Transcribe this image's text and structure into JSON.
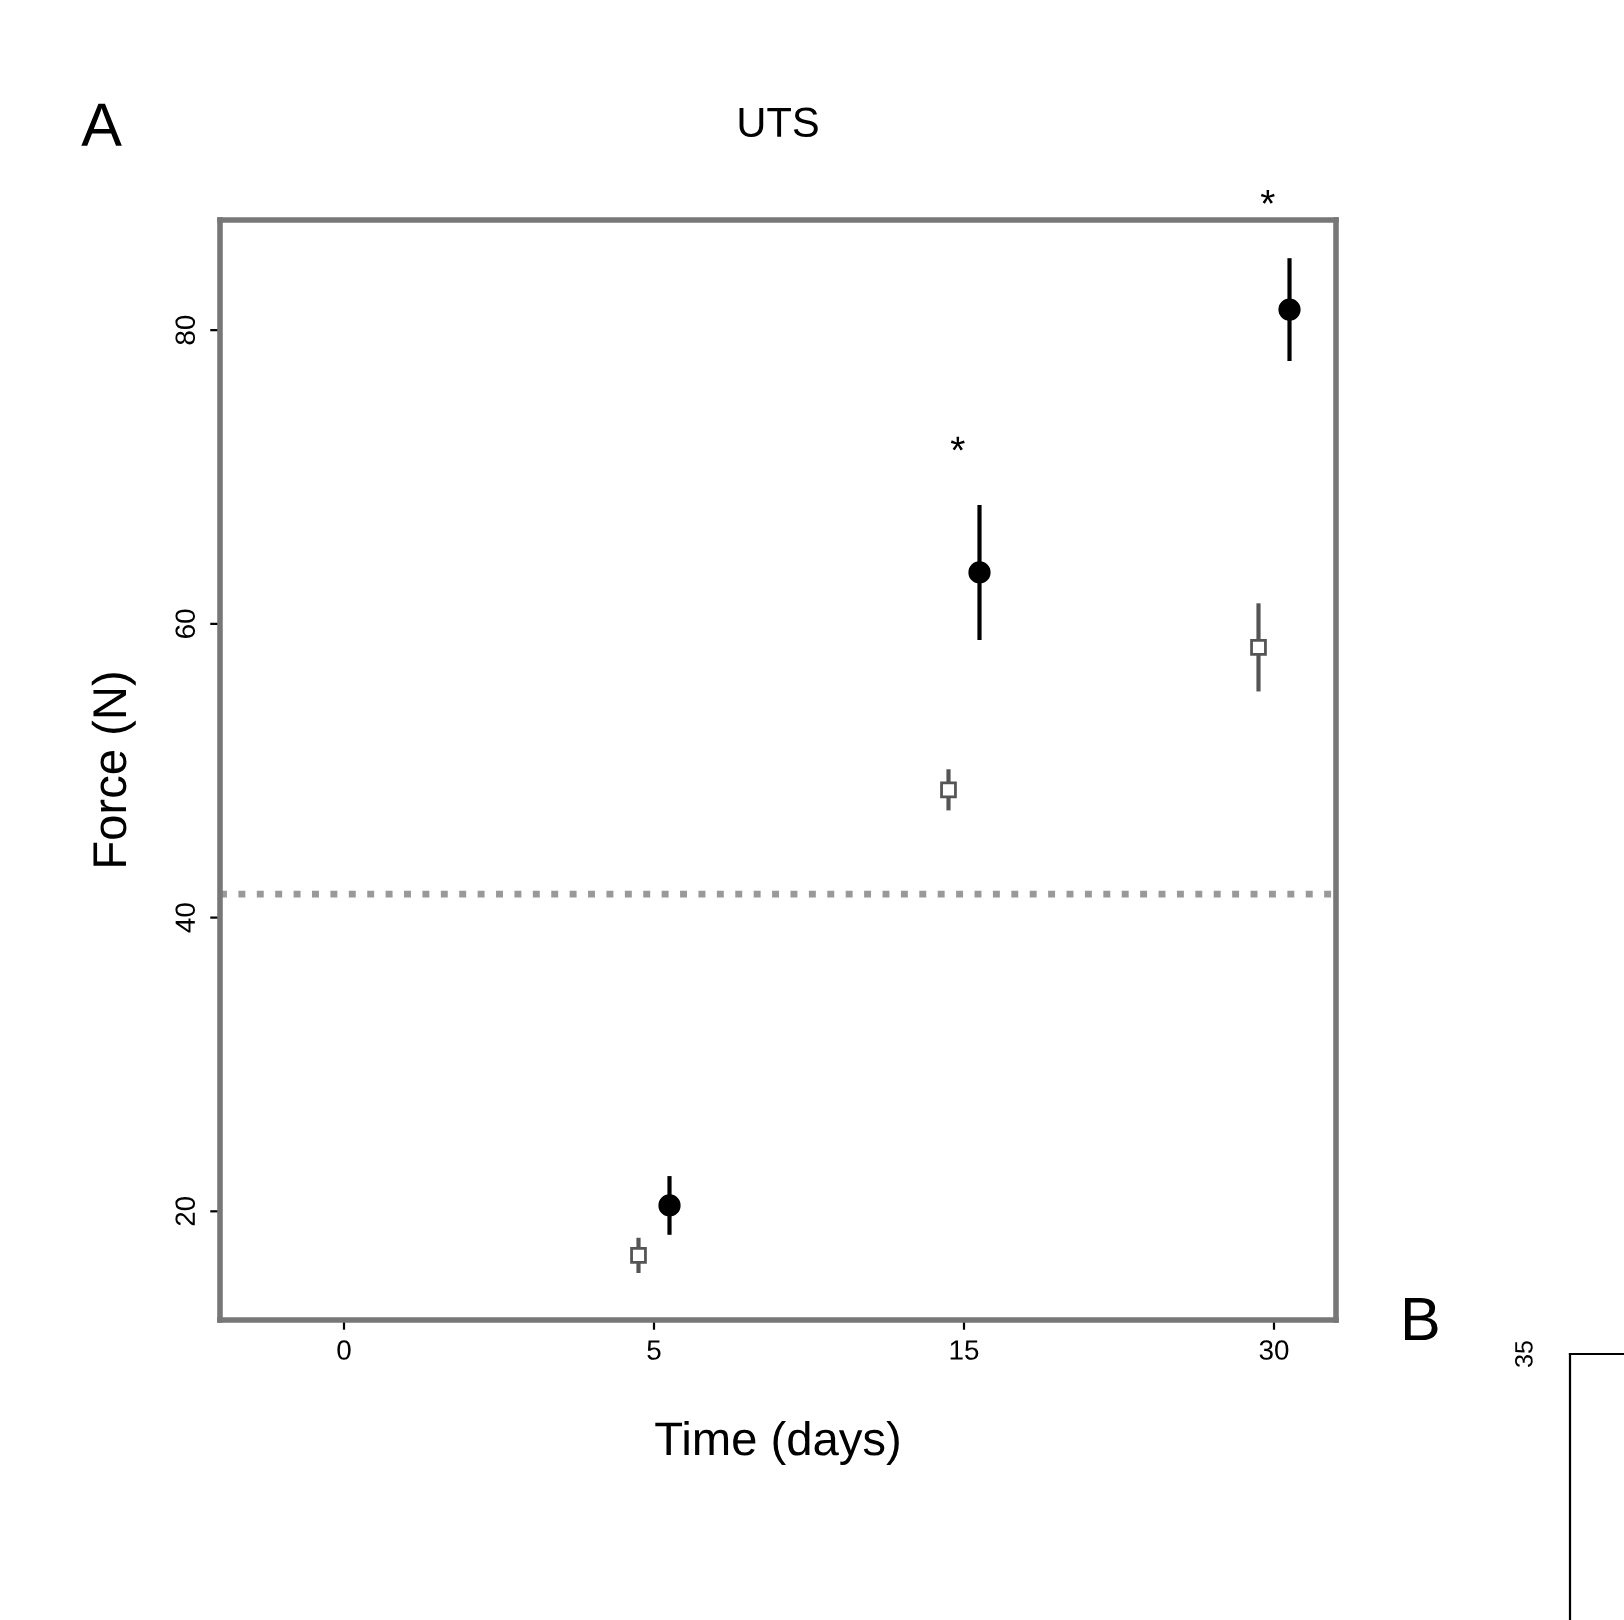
{
  "chart_data": [
    {
      "type": "scatter",
      "title": "UTS",
      "xlabel": "Time (days)",
      "ylabel": "Force (N)",
      "categories": [
        "0",
        "5",
        "15",
        "30"
      ],
      "series": [
        {
          "color": "#555555",
          "marker": "square",
          "values": [
            null,
            17.0,
            48.7,
            58.4
          ],
          "errors": [
            null,
            1.2,
            1.4,
            3.0
          ]
        },
        {
          "color": "#000000",
          "marker": "circle",
          "values": [
            null,
            20.4,
            63.5,
            81.4
          ],
          "errors": [
            null,
            2.0,
            4.6,
            3.5
          ]
        }
      ],
      "ylim": [
        12.6,
        87.5
      ],
      "yticks": [
        20,
        40,
        60,
        80
      ],
      "ref_lines": [
        {
          "axis": "y",
          "value": 41.6,
          "color": "#999999",
          "line_style": "dotted"
        }
      ],
      "annotations": [
        "A",
        "*",
        "*"
      ],
      "grid": false,
      "legend": false
    },
    {
      "type": "other",
      "annotations": [
        "B",
        "35"
      ]
    }
  ]
}
